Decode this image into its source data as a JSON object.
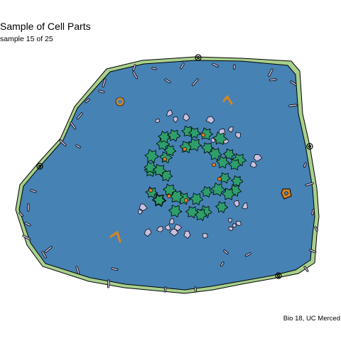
{
  "header": {
    "title": "Sample of Cell Parts",
    "subtitle": "sample 15 of 25"
  },
  "footer": {
    "caption": "Bio 18, UC Merced"
  },
  "colors": {
    "background": "#ffffff",
    "cell_wall": "#a8d08d",
    "cytoplasm": "#4682b4",
    "chloroplast": "#2e9e6b",
    "vesicle": "#c9c0e0",
    "organelle_orange": "#d9841f",
    "nucleolus": "#e07b28",
    "outline": "#000000"
  }
}
